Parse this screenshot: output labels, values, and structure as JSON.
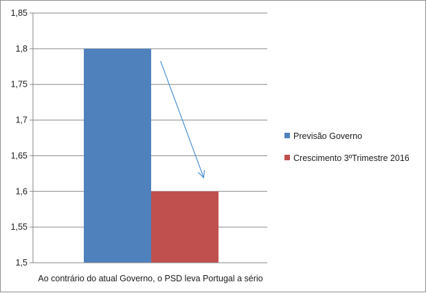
{
  "chart_data": {
    "type": "bar",
    "categories": [
      "Ao contrário do atual Governo, o PSD leva Portugal a sério"
    ],
    "series": [
      {
        "name": "Previsão Governo",
        "values": [
          1.8
        ],
        "color": "#4f81bd"
      },
      {
        "name": "Crescimento 3ºTrimestre 2016",
        "values": [
          1.6
        ],
        "color": "#c0504d"
      }
    ],
    "ylim": [
      1.5,
      1.85
    ],
    "yticks": [
      "1,5",
      "1,55",
      "1,6",
      "1,65",
      "1,7",
      "1,75",
      "1,8",
      "1,85"
    ],
    "grid": true,
    "legend_position": "right",
    "annotation": {
      "type": "arrow",
      "from_series": "Previsão Governo",
      "to_series": "Crescimento 3ºTrimestre 2016",
      "color": "#4a8fd0"
    }
  }
}
